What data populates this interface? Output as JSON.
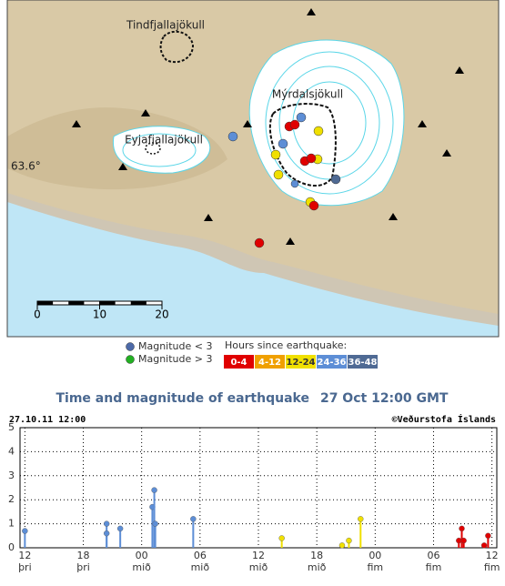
{
  "map": {
    "labels": [
      "Tindfjallajökull",
      "Mýrdalsjökull",
      "Eyjafjallajökull"
    ],
    "latitude": "63.6°",
    "scale_ticks": [
      0,
      10,
      20
    ]
  },
  "legend": {
    "magnitude": [
      {
        "label": "Magnitude < 3",
        "color": "#4d6aa8"
      },
      {
        "label": "Magnitude > 3",
        "color": "#22b022"
      }
    ],
    "hours_title": "Hours since earthquake:",
    "hours": [
      {
        "label": "0-4",
        "color": "#e00000"
      },
      {
        "label": "4-12",
        "color": "#f0a000"
      },
      {
        "label": "12-24",
        "color": "#f0e000"
      },
      {
        "label": "24-36",
        "color": "#5d8ed6"
      },
      {
        "label": "36-48",
        "color": "#4f6a94"
      }
    ]
  },
  "chart_data": {
    "type": "stem",
    "title": "Time and magnitude of earthquake",
    "subtitle": "27 Oct 12:00 GMT",
    "timestamp": "27.10.11 12:00",
    "credit": "©Veðurstofa Íslands",
    "x": [
      0,
      8.4,
      8.4,
      9.8,
      13.1,
      13.3,
      13.4,
      17.3,
      26.4,
      32.6,
      33.3,
      34.5,
      44.6,
      44.9,
      45.1,
      47.2,
      47.6
    ],
    "values": [
      0.7,
      1.0,
      0.6,
      0.8,
      1.7,
      2.4,
      1.0,
      1.2,
      0.4,
      0.1,
      0.3,
      1.2,
      0.3,
      0.8,
      0.3,
      0.1,
      0.5
    ],
    "colors": [
      "#5d8ed6",
      "#5d8ed6",
      "#5d8ed6",
      "#5d8ed6",
      "#5d8ed6",
      "#5d8ed6",
      "#5d8ed6",
      "#5d8ed6",
      "#f0e000",
      "#f0e000",
      "#f0e000",
      "#f0e000",
      "#e00000",
      "#e00000",
      "#e00000",
      "#e00000",
      "#e00000"
    ],
    "xlim": [
      -0.5,
      48.5
    ],
    "xticks": [
      {
        "value": 0,
        "label": "12"
      },
      {
        "value": 6,
        "label": "18"
      },
      {
        "value": 12,
        "label": "00"
      },
      {
        "value": 18,
        "label": "06"
      },
      {
        "value": 24,
        "label": "12"
      },
      {
        "value": 30,
        "label": "18"
      },
      {
        "value": 36,
        "label": "00"
      },
      {
        "value": 42,
        "label": "06"
      },
      {
        "value": 48,
        "label": "12"
      }
    ],
    "xtick_days": [
      "þri",
      "þri",
      "mið",
      "mið",
      "mið",
      "mið",
      "fim",
      "fim",
      "fim"
    ],
    "ylim": [
      0,
      5
    ],
    "yticks": [
      0,
      1,
      2,
      3,
      4,
      5
    ],
    "grid": true
  }
}
